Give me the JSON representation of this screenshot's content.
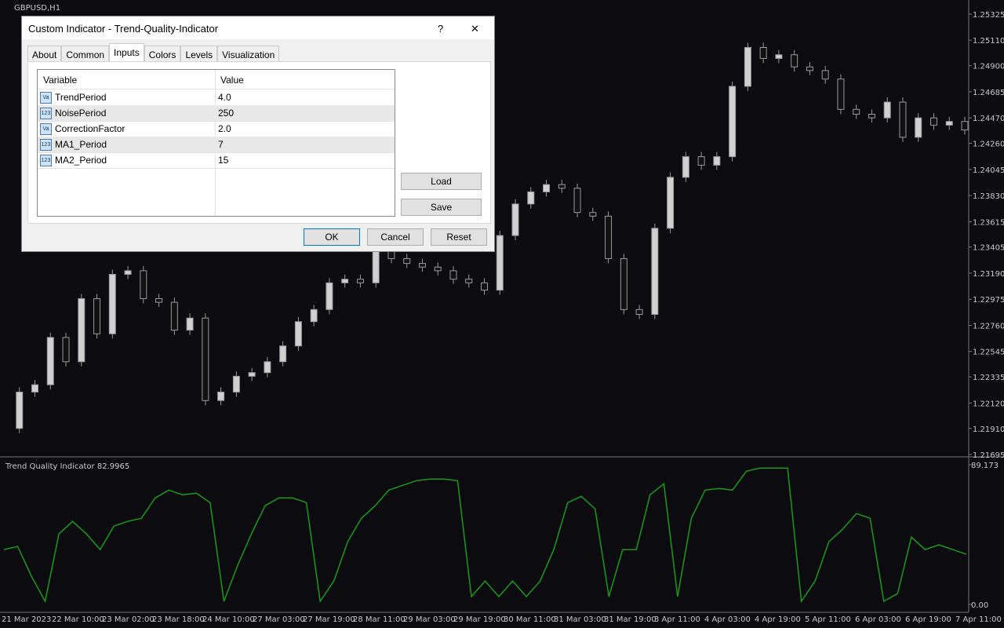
{
  "chart": {
    "symbol_label": "GBPUSD,H1",
    "price_ticks": [
      1.25325,
      {
        "value": 1.2511,
        "label": "1.25110"
      },
      {
        "value": 1.249,
        "label": "1.24900"
      },
      1.24685,
      {
        "value": 1.2447,
        "label": "1.24470"
      },
      {
        "value": 1.2426,
        "label": "1.24260"
      },
      1.24045,
      {
        "value": 1.2383,
        "label": "1.23830"
      },
      1.23615,
      1.23405,
      {
        "value": 1.2319,
        "label": "1.23190"
      },
      1.22975,
      {
        "value": 1.2276,
        "label": "1.22760"
      },
      1.22545,
      1.22335,
      {
        "value": 1.2212,
        "label": "1.22120"
      },
      {
        "value": 1.2191,
        "label": "1.21910"
      },
      1.21695
    ],
    "price_lim": [
      1.21695,
      1.25325
    ],
    "closes": [
      1.2191,
      1.2221,
      1.2227,
      1.2266,
      1.2246,
      1.2298,
      1.2269,
      1.2318,
      1.2321,
      1.2298,
      1.2295,
      1.2272,
      1.2282,
      1.2214,
      1.2221,
      1.2234,
      1.2237,
      1.2246,
      1.2259,
      1.2279,
      1.2289,
      1.2311,
      1.2314,
      1.2311,
      1.2337,
      1.2331,
      1.2327,
      1.2324,
      1.2321,
      1.2314,
      1.2311,
      1.2305,
      1.235,
      1.2376,
      1.2386,
      1.2392,
      1.2389,
      1.2369,
      1.2366,
      1.2331,
      1.2289,
      1.2285,
      1.2356,
      1.2398,
      1.2415,
      1.2408,
      1.2415,
      1.2473,
      1.2505,
      1.2496,
      1.2499,
      1.2489,
      1.2486,
      1.2479,
      1.2454,
      1.245,
      1.2447,
      1.246,
      1.2431,
      1.2447,
      1.2441,
      1.2444,
      1.2437
    ],
    "dates": [
      "21 Mar 2023",
      "22 Mar 10:00",
      "23 Mar 02:00",
      "23 Mar 18:00",
      "24 Mar 10:00",
      "27 Mar 03:00",
      "27 Mar 19:00",
      "28 Mar 11:00",
      "29 Mar 03:00",
      "29 Mar 19:00",
      "30 Mar 11:00",
      "31 Mar 03:00",
      "31 Mar 19:00",
      "3 Apr 11:00",
      "4 Apr 03:00",
      "4 Apr 19:00",
      "5 Apr 11:00",
      "6 Apr 03:00",
      "6 Apr 19:00",
      "7 Apr 11:00"
    ],
    "indicator": {
      "label": "Trend Quality Indicator 82.9965",
      "color": "#1a9a1a",
      "ticks": [
        89.173,
        {
          "value": 0,
          "label": "0.00"
        }
      ],
      "lim": [
        0,
        89.173
      ],
      "values": [
        35,
        37,
        18,
        2,
        45,
        53,
        45,
        35,
        50,
        53,
        55,
        68,
        73,
        70,
        71,
        65,
        2,
        25,
        45,
        63,
        68,
        68,
        65,
        2,
        15,
        40,
        55,
        63,
        73,
        76,
        79,
        80,
        80,
        79,
        5,
        15,
        5,
        15,
        5,
        15,
        35,
        65,
        69,
        61,
        5,
        35,
        35,
        70,
        77,
        5,
        55,
        73,
        74,
        73,
        85,
        87,
        87,
        87,
        2,
        15,
        40,
        48,
        58,
        55,
        2,
        7,
        43,
        35,
        38,
        35,
        32
      ]
    }
  },
  "dialog": {
    "title": "Custom Indicator - Trend-Quality-Indicator",
    "help": "?",
    "close": "✕",
    "tabs": [
      "About",
      "Common",
      "Inputs",
      "Colors",
      "Levels",
      "Visualization"
    ],
    "columns": [
      "Variable",
      "Value"
    ],
    "rows": [
      [
        "Va",
        "TrendPeriod",
        "4.0"
      ],
      [
        "123",
        "NoisePeriod",
        "250"
      ],
      [
        "Va",
        "CorrectionFactor",
        "2.0"
      ],
      [
        "123",
        "MA1_Period",
        "7"
      ],
      [
        "123",
        "MA2_Period",
        "15"
      ]
    ],
    "side_buttons": [
      "Load",
      "Save"
    ],
    "buttons": [
      "OK",
      "Cancel",
      "Reset"
    ]
  }
}
